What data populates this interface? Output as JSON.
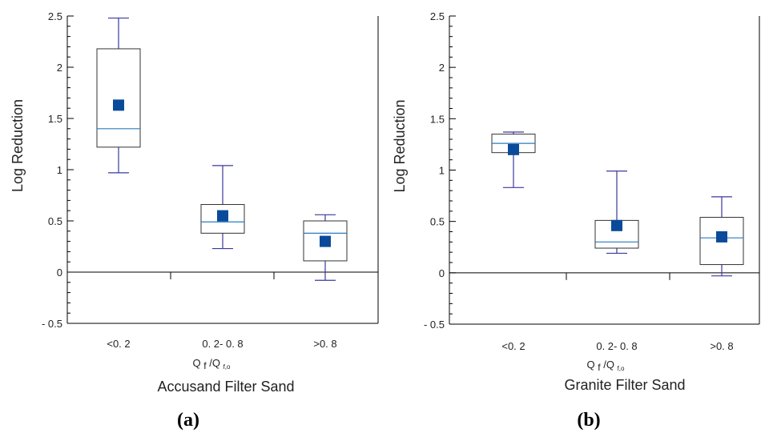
{
  "chart_data": [
    {
      "type": "box",
      "panel_label": "(a)",
      "title": "Accusand Filter Sand",
      "xlabel": "Q f /Q f,o",
      "ylabel": "Log Reduction",
      "ylim": [
        -0.5,
        2.5
      ],
      "yticks": [
        "2.5",
        "2",
        "1.5",
        "1",
        "0.5",
        "0",
        "- 0.5"
      ],
      "categories": [
        "<0. 2",
        "0. 2- 0. 8",
        ">0. 8"
      ],
      "boxes": [
        {
          "whisker_low": 0.97,
          "q1": 1.22,
          "median": 1.4,
          "q3": 2.18,
          "whisker_high": 2.48,
          "mean": 1.63
        },
        {
          "whisker_low": 0.23,
          "q1": 0.38,
          "median": 0.49,
          "q3": 0.66,
          "whisker_high": 1.04,
          "mean": 0.55
        },
        {
          "whisker_low": -0.08,
          "q1": 0.11,
          "median": 0.38,
          "q3": 0.5,
          "whisker_high": 0.56,
          "mean": 0.3
        }
      ],
      "grid": false,
      "colors": {
        "whisker": "#3a3a9e",
        "median": "#2a7bbf",
        "mean": "#0a4a9a",
        "box": "#333333"
      }
    },
    {
      "type": "box",
      "panel_label": "(b)",
      "title": "Granite Filter Sand",
      "xlabel": "Q f /Q f,o",
      "ylabel": "Log Reduction",
      "ylim": [
        -0.5,
        2.5
      ],
      "yticks": [
        "2.5",
        "2",
        "1.5",
        "1",
        "0.5",
        "0",
        "- 0.5"
      ],
      "categories": [
        "<0. 2",
        "0. 2- 0. 8",
        ">0. 8"
      ],
      "boxes": [
        {
          "whisker_low": 0.83,
          "q1": 1.17,
          "median": 1.26,
          "q3": 1.35,
          "whisker_high": 1.37,
          "mean": 1.2
        },
        {
          "whisker_low": 0.19,
          "q1": 0.24,
          "median": 0.3,
          "q3": 0.51,
          "whisker_high": 0.99,
          "mean": 0.46
        },
        {
          "whisker_low": -0.03,
          "q1": 0.08,
          "median": 0.34,
          "q3": 0.54,
          "whisker_high": 0.74,
          "mean": 0.35
        }
      ],
      "grid": false,
      "colors": {
        "whisker": "#3a3a9e",
        "median": "#2a7bbf",
        "mean": "#0a4a9a",
        "box": "#333333"
      }
    }
  ]
}
